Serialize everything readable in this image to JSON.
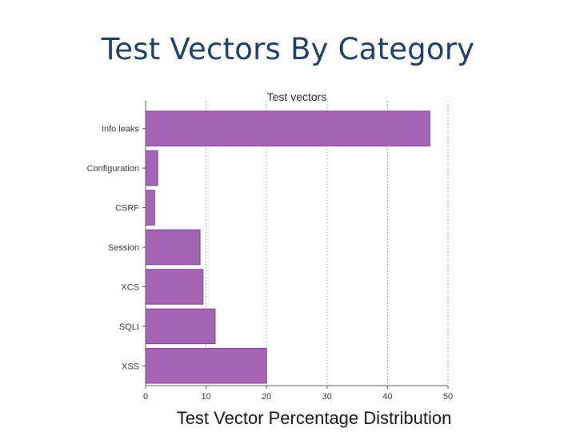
{
  "slide": {
    "title": "Test Vectors By Category",
    "caption": "Test Vector Percentage Distribution"
  },
  "chart_data": {
    "type": "bar",
    "orientation": "horizontal",
    "title": "Test vectors",
    "xlabel": "",
    "ylabel": "",
    "categories": [
      "Info leaks",
      "Configuration",
      "CSRF",
      "Session",
      "XCS",
      "SQLI",
      "XSS"
    ],
    "values": [
      47,
      2,
      1.5,
      9,
      9.5,
      11.5,
      20
    ],
    "xlim": [
      0,
      50
    ],
    "xticks": [
      0,
      10,
      20,
      30,
      40,
      50
    ],
    "grid": true,
    "bar_color": "#a564b4",
    "bar_edge_color": "#7d3d8c"
  }
}
